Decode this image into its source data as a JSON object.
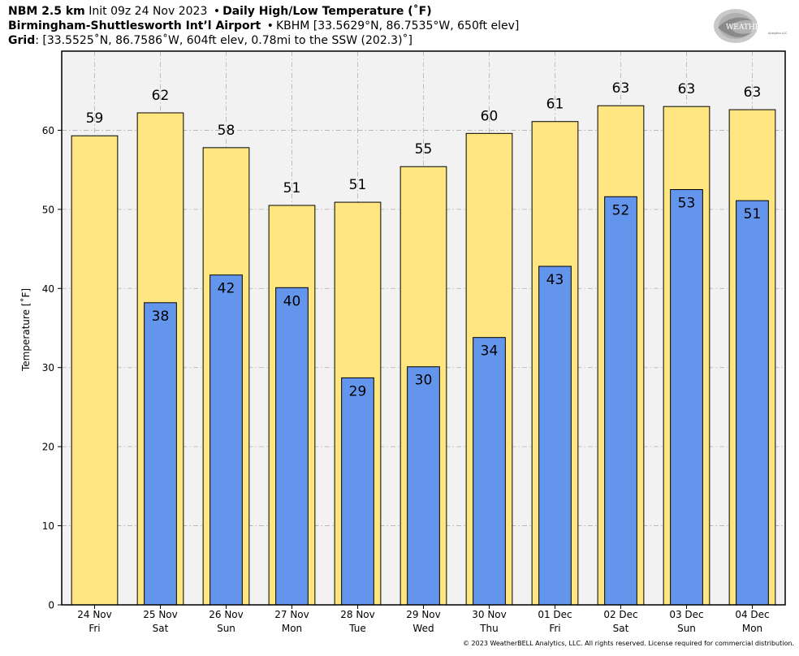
{
  "header": {
    "line1": {
      "model": "NBM 2.5 km",
      "init": "Init 09z 24 Nov 2023",
      "product": "Daily High/Low Temperature (˚F)"
    },
    "line2": {
      "station": "Birmingham-Shuttlesworth Int’l Airport",
      "detail": "KBHM [33.5629°N, 86.7535°W, 650ft elev]"
    },
    "line3": {
      "label": "Grid",
      "detail": ": [33.5525˚N, 86.7586˚W, 604ft elev, 0.78mi to the SSW (202.3)˚]"
    },
    "separator": "•"
  },
  "logo": {
    "text_main": "WEATHERBELL",
    "text_sub": "Analytics LLC"
  },
  "copyright": "© 2023 WeatherBELL Analytics, LLC. All rights reserved. License required for commercial distribution.",
  "colors": {
    "high_fill": "#FFE680",
    "low_fill": "#6495ED",
    "plot_bg": "#F2F2F2",
    "grid": "#B0B0B0"
  },
  "chart_data": {
    "type": "bar",
    "ylabel": "Temperature [˚F]",
    "ylim": [
      0,
      70
    ],
    "yticks": [
      0,
      10,
      20,
      30,
      40,
      50,
      60
    ],
    "grid": true,
    "categories": [
      {
        "date": "24 Nov",
        "day": "Fri"
      },
      {
        "date": "25 Nov",
        "day": "Sat"
      },
      {
        "date": "26 Nov",
        "day": "Sun"
      },
      {
        "date": "27 Nov",
        "day": "Mon"
      },
      {
        "date": "28 Nov",
        "day": "Tue"
      },
      {
        "date": "29 Nov",
        "day": "Wed"
      },
      {
        "date": "30 Nov",
        "day": "Thu"
      },
      {
        "date": "01 Dec",
        "day": "Fri"
      },
      {
        "date": "02 Dec",
        "day": "Sat"
      },
      {
        "date": "03 Dec",
        "day": "Sun"
      },
      {
        "date": "04 Dec",
        "day": "Mon"
      }
    ],
    "series": [
      {
        "key": "high",
        "values": [
          59.3,
          62.2,
          57.8,
          50.5,
          50.9,
          55.4,
          59.6,
          61.1,
          63.1,
          63.0,
          62.6
        ],
        "labels": [
          "59",
          "62",
          "58",
          "51",
          "51",
          "55",
          "60",
          "61",
          "63",
          "63",
          "63"
        ]
      },
      {
        "key": "low",
        "values": [
          null,
          38.2,
          41.7,
          40.1,
          28.7,
          30.1,
          33.8,
          42.8,
          51.6,
          52.5,
          51.1
        ],
        "labels": [
          "",
          "38",
          "42",
          "40",
          "29",
          "30",
          "34",
          "43",
          "52",
          "53",
          "51"
        ]
      }
    ]
  }
}
